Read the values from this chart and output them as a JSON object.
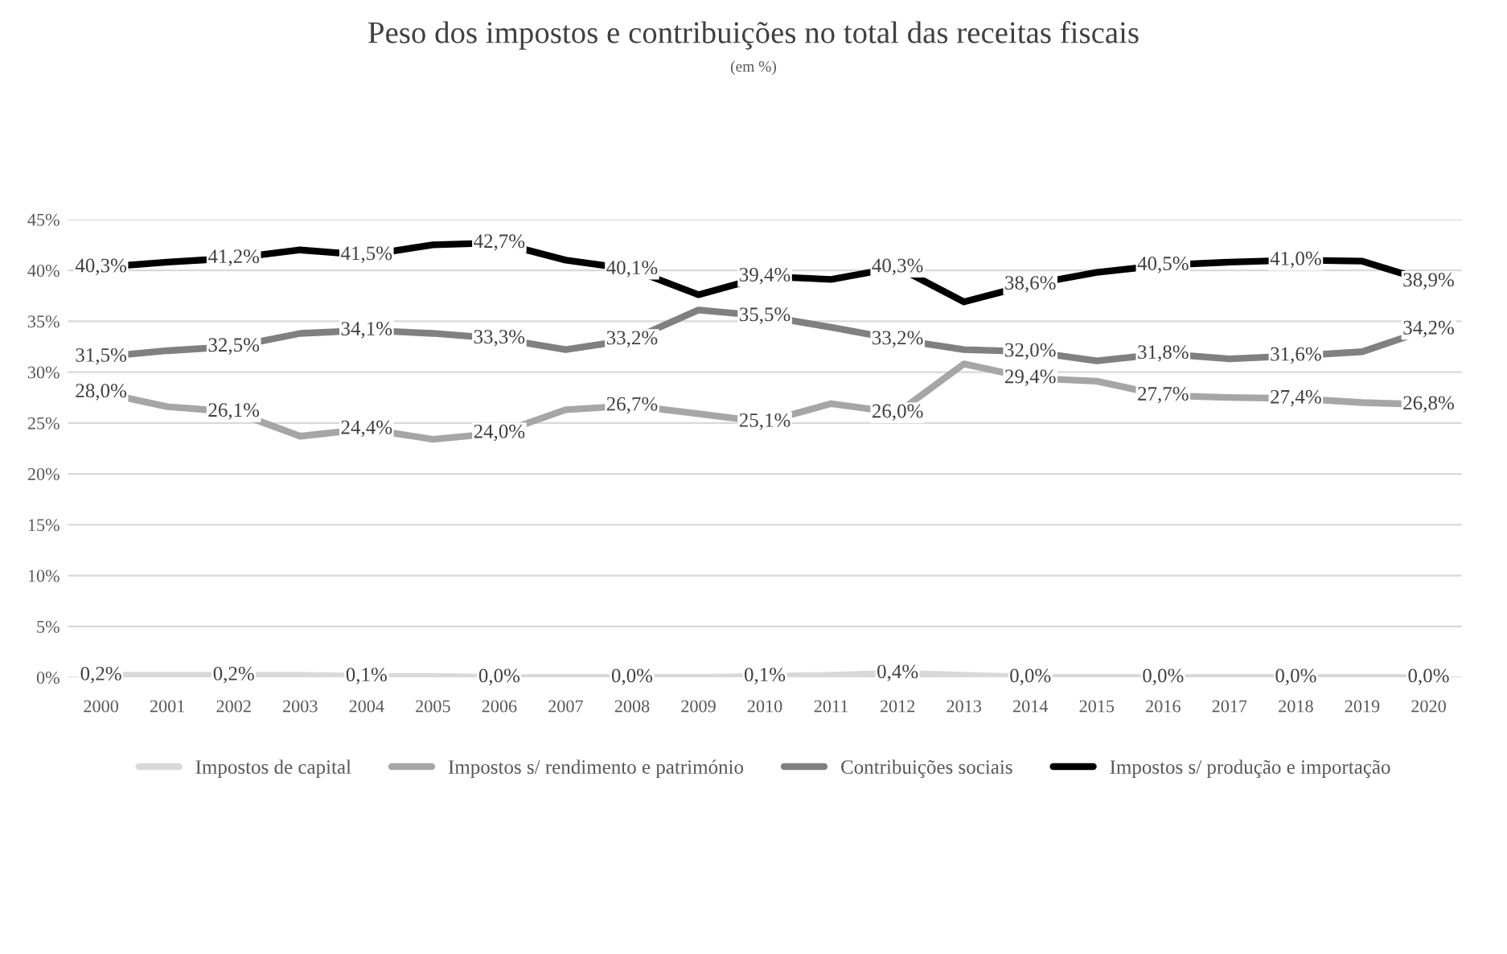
{
  "chart_data": {
    "type": "line",
    "title": "Peso dos impostos e contribuições no total das receitas fiscais",
    "subtitle": "(em %)",
    "categories": [
      "2000",
      "2001",
      "2002",
      "2003",
      "2004",
      "2005",
      "2006",
      "2007",
      "2008",
      "2009",
      "2010",
      "2011",
      "2012",
      "2013",
      "2014",
      "2015",
      "2016",
      "2017",
      "2018",
      "2019",
      "2020"
    ],
    "series": [
      {
        "name": "Impostos de capital",
        "color": "#d9d9d9",
        "values": [
          0.2,
          0.2,
          0.2,
          0.2,
          0.1,
          0.1,
          0.0,
          0.0,
          0.0,
          0.0,
          0.1,
          0.2,
          0.4,
          0.2,
          0.0,
          0.0,
          0.0,
          0.0,
          0.0,
          0.0,
          0.0
        ],
        "value_labels": [
          "0,2%",
          null,
          "0,2%",
          null,
          "0,1%",
          null,
          "0,0%",
          null,
          "0,0%",
          null,
          "0,1%",
          null,
          "0,4%",
          null,
          "0,0%",
          null,
          "0,0%",
          null,
          "0,0%",
          null,
          "0,0%"
        ]
      },
      {
        "name": "Impostos s/ rendimento e património",
        "color": "#a6a6a6",
        "values": [
          28.0,
          26.6,
          26.1,
          23.7,
          24.4,
          23.4,
          24.0,
          26.3,
          26.7,
          25.9,
          25.1,
          26.9,
          26.0,
          30.8,
          29.4,
          29.1,
          27.7,
          27.5,
          27.4,
          27.0,
          26.8
        ],
        "value_labels": [
          "28,0%",
          null,
          "26,1%",
          null,
          "24,4%",
          null,
          "24,0%",
          null,
          "26,7%",
          null,
          "25,1%",
          null,
          "26,0%",
          null,
          "29,4%",
          null,
          "27,7%",
          null,
          "27,4%",
          null,
          "26,8%"
        ]
      },
      {
        "name": "Contribuições sociais",
        "color": "#808080",
        "values": [
          31.5,
          32.1,
          32.5,
          33.8,
          34.1,
          33.8,
          33.3,
          32.2,
          33.2,
          36.1,
          35.5,
          34.4,
          33.2,
          32.2,
          32.0,
          31.1,
          31.8,
          31.3,
          31.6,
          32.0,
          34.2
        ],
        "value_labels": [
          "31,5%",
          null,
          "32,5%",
          null,
          "34,1%",
          null,
          "33,3%",
          null,
          "33,2%",
          null,
          "35,5%",
          null,
          "33,2%",
          null,
          "32,0%",
          null,
          "31,8%",
          null,
          "31,6%",
          null,
          "34,2%"
        ]
      },
      {
        "name": "Impostos s/ produção e importação",
        "color": "#000000",
        "values": [
          40.3,
          40.8,
          41.2,
          42.0,
          41.5,
          42.5,
          42.7,
          41.0,
          40.1,
          37.6,
          39.4,
          39.1,
          40.3,
          36.9,
          38.6,
          39.8,
          40.5,
          40.8,
          41.0,
          40.9,
          38.9
        ],
        "value_labels": [
          "40,3%",
          null,
          "41,2%",
          null,
          "41,5%",
          null,
          "42,7%",
          null,
          "40,1%",
          null,
          "39,4%",
          null,
          "40,3%",
          null,
          "38,6%",
          null,
          "40,5%",
          null,
          "41,0%",
          null,
          "38,9%"
        ]
      }
    ],
    "ylim": [
      0,
      45
    ],
    "yticks": [
      {
        "value": 0,
        "label": "0%"
      },
      {
        "value": 5,
        "label": "5%"
      },
      {
        "value": 10,
        "label": "10%"
      },
      {
        "value": 15,
        "label": "15%"
      },
      {
        "value": 20,
        "label": "20%"
      },
      {
        "value": 25,
        "label": "25%"
      },
      {
        "value": 30,
        "label": "30%"
      },
      {
        "value": 35,
        "label": "35%"
      },
      {
        "value": 40,
        "label": "40%"
      },
      {
        "value": 45,
        "label": "45%"
      }
    ],
    "grid": "y",
    "legend": "bottom",
    "line_style": "solid"
  }
}
